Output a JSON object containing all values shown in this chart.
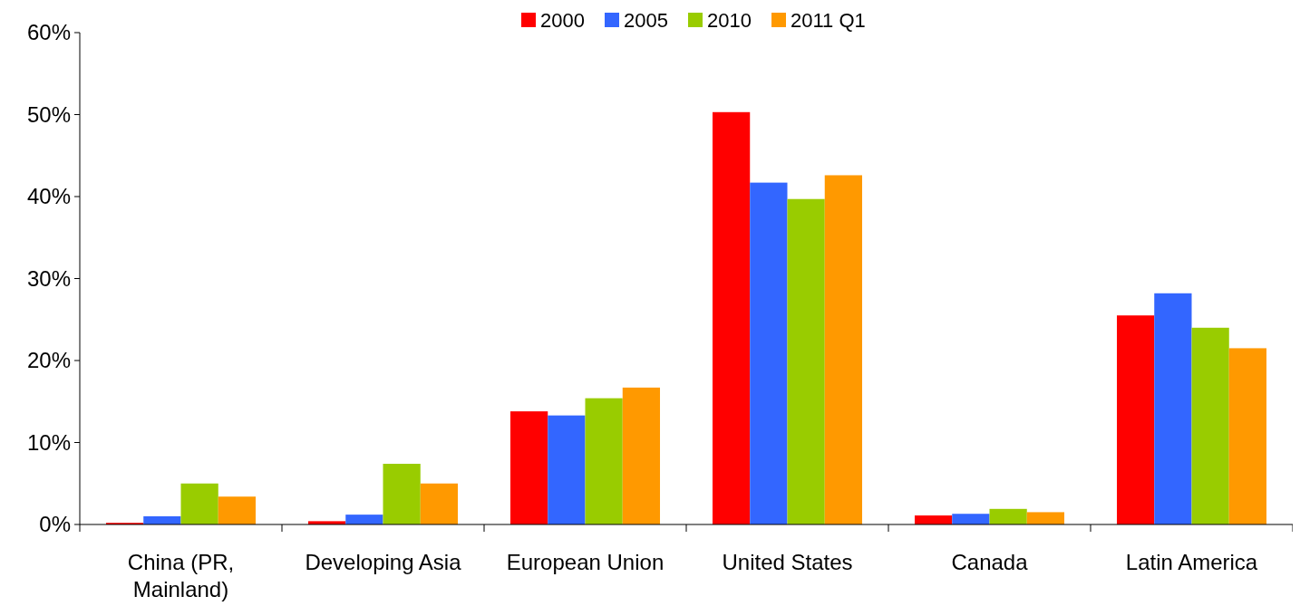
{
  "chart_data": {
    "type": "bar",
    "categories": [
      "China (PR, Mainland)",
      "Developing Asia",
      "European Union",
      "United States",
      "Canada",
      "Latin America"
    ],
    "series": [
      {
        "name": "2000",
        "color": "#ff0000",
        "values": [
          0.2,
          0.4,
          13.8,
          50.3,
          1.1,
          25.5
        ]
      },
      {
        "name": "2005",
        "color": "#3366ff",
        "values": [
          1.0,
          1.2,
          13.3,
          41.7,
          1.3,
          28.2
        ]
      },
      {
        "name": "2010",
        "color": "#99cc00",
        "values": [
          5.0,
          7.4,
          15.4,
          39.7,
          1.9,
          24.0
        ]
      },
      {
        "name": "2011 Q1",
        "color": "#ff9900",
        "values": [
          3.4,
          5.0,
          16.7,
          42.6,
          1.5,
          21.5
        ]
      }
    ],
    "ylim": [
      0,
      60
    ],
    "yticks": [
      {
        "value": 0,
        "label": "0%"
      },
      {
        "value": 10,
        "label": "10%"
      },
      {
        "value": 20,
        "label": "20%"
      },
      {
        "value": 30,
        "label": "30%"
      },
      {
        "value": 40,
        "label": "40%"
      },
      {
        "value": 50,
        "label": "50%"
      },
      {
        "value": 60,
        "label": "60%"
      }
    ],
    "grid": false,
    "legend": "top"
  }
}
